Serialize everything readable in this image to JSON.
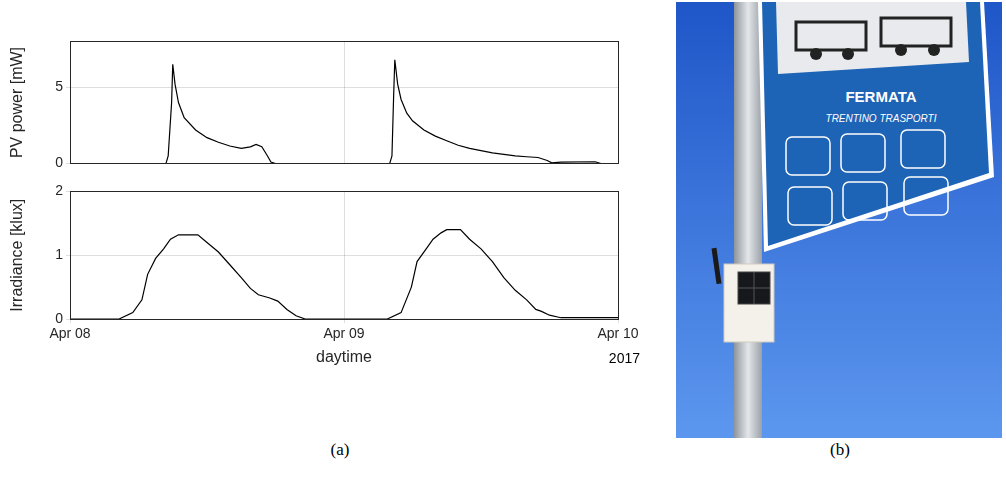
{
  "chart_data": [
    {
      "type": "line",
      "y_label": "PV power [mW]",
      "color": "#000000",
      "grid": true,
      "tick_labels": "y",
      "xlim": [
        0,
        48
      ],
      "xticks": [
        {
          "value": 0,
          "label": "Apr 08"
        },
        {
          "value": 24,
          "label": "Apr 09"
        },
        {
          "value": 48,
          "label": "Apr 10"
        }
      ],
      "ylim": [
        0,
        8
      ],
      "yticks": [
        0,
        5
      ],
      "x": [
        0,
        8.4,
        8.6,
        8.9,
        9.0,
        9.2,
        9.5,
        10,
        11,
        12,
        13,
        14,
        15,
        15.8,
        16.3,
        16.8,
        17.3,
        17.6,
        18,
        24,
        28.0,
        28.2,
        28.35,
        28.45,
        28.7,
        29,
        29.5,
        30,
        31,
        32,
        33,
        34,
        35,
        36,
        37,
        38,
        39,
        40,
        41,
        41.8,
        42.2,
        43,
        46,
        46.5,
        48
      ],
      "values": [
        0,
        0,
        0.5,
        4,
        6.5,
        5.2,
        4.0,
        3.0,
        2.2,
        1.7,
        1.4,
        1.15,
        1.0,
        1.1,
        1.25,
        1.1,
        0.5,
        0.1,
        0,
        0,
        0,
        0.5,
        4.5,
        6.8,
        5.2,
        4.2,
        3.3,
        2.8,
        2.2,
        1.8,
        1.5,
        1.2,
        1.0,
        0.85,
        0.7,
        0.6,
        0.5,
        0.45,
        0.4,
        0.2,
        0.05,
        0.1,
        0.12,
        0,
        0
      ]
    },
    {
      "type": "line",
      "y_label": "Irradiance [klux]",
      "x_label": "daytime",
      "annotations": [
        "2017"
      ],
      "color": "#000000",
      "grid": true,
      "xlim": [
        0,
        48
      ],
      "xticks": [
        {
          "value": 0,
          "label": "Apr 08"
        },
        {
          "value": 24,
          "label": "Apr 09"
        },
        {
          "value": 48,
          "label": "Apr 10"
        }
      ],
      "ylim": [
        0,
        2
      ],
      "yticks": [
        0,
        1,
        2
      ],
      "x": [
        0,
        4.3,
        5.5,
        6.3,
        6.8,
        7.5,
        8.2,
        8.8,
        9.5,
        11.2,
        12,
        13,
        14,
        15,
        15.8,
        16.5,
        17.5,
        18.2,
        19,
        19.8,
        20.6,
        24,
        27.8,
        29,
        29.9,
        30.4,
        31.2,
        31.8,
        32.5,
        33,
        34.2,
        35,
        36,
        37,
        38,
        39,
        40,
        40.8,
        41.3,
        42,
        43,
        48
      ],
      "values": [
        0,
        0,
        0.1,
        0.3,
        0.7,
        0.95,
        1.1,
        1.25,
        1.32,
        1.32,
        1.2,
        1.05,
        0.85,
        0.65,
        0.48,
        0.38,
        0.33,
        0.28,
        0.15,
        0.05,
        0,
        0,
        0,
        0.1,
        0.5,
        0.9,
        1.1,
        1.25,
        1.35,
        1.4,
        1.4,
        1.25,
        1.1,
        0.9,
        0.65,
        0.45,
        0.3,
        0.15,
        0.12,
        0.06,
        0.02,
        0.02
      ]
    }
  ],
  "panel_labels": [
    "(a)",
    "(b)"
  ],
  "photo": {
    "texts": [
      "FERMATA",
      "TRENTINO TRASPORTI"
    ]
  }
}
